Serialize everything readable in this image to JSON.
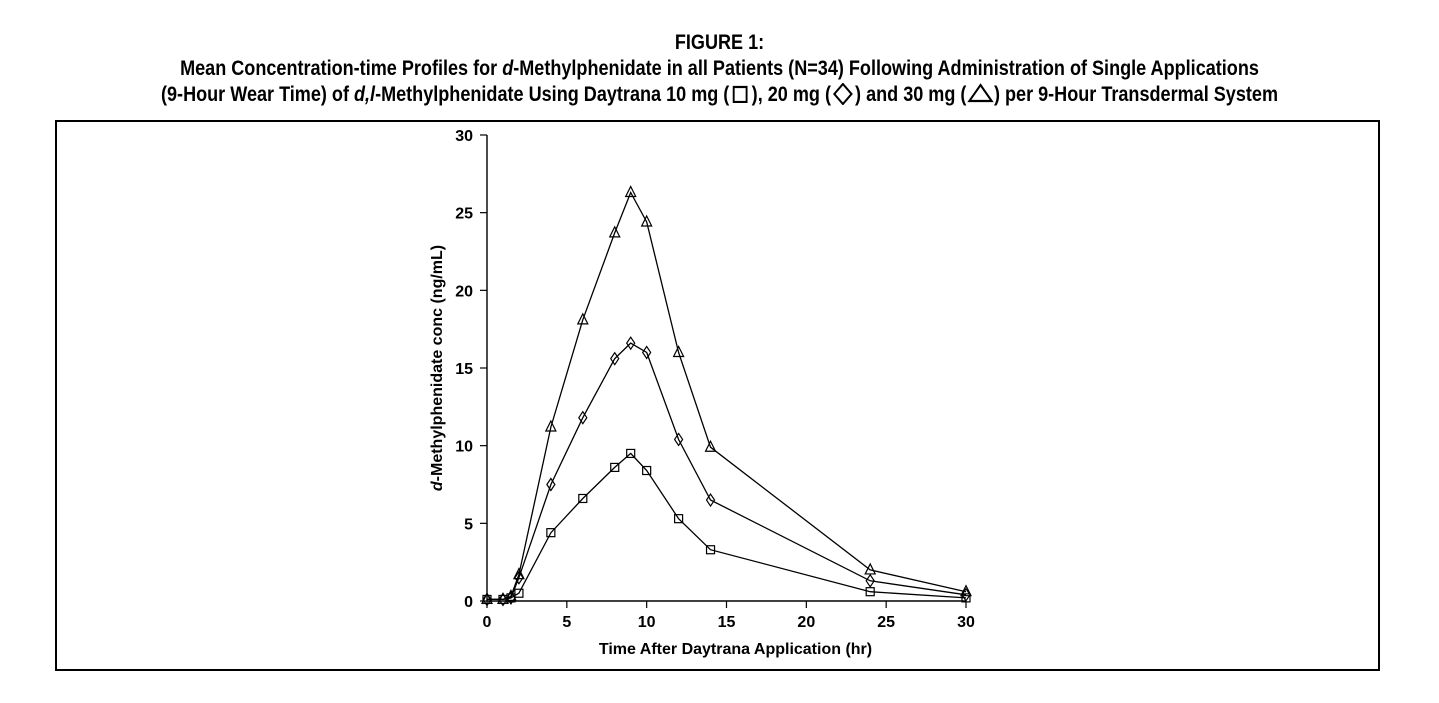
{
  "figure": {
    "heading": "FIGURE 1:",
    "caption_line1_a": "Mean Concentration-time Profiles for ",
    "caption_line1_italic": "d",
    "caption_line1_b": "-Methylphenidate in all Patients (N=34) Following Administration of Single Applications",
    "caption_line2_a": "(9-Hour Wear Time) of ",
    "caption_line2_italic": "d,l",
    "caption_line2_b": "-Methylphenidate Using Daytrana 10 mg (",
    "caption_line2_c": "), 20 mg (",
    "caption_line2_d": ") and 30 mg (",
    "caption_line2_e": ") per 9-Hour Transdermal System"
  },
  "chart_data": {
    "type": "line",
    "xlabel": "Time After Daytrana Application (hr)",
    "ylabel_italic": "d",
    "ylabel_rest": "-Methylphenidate conc (ng/mL)",
    "xlim": [
      0,
      30
    ],
    "ylim": [
      0,
      30
    ],
    "xticks": [
      0,
      5,
      10,
      15,
      20,
      25,
      30
    ],
    "yticks": [
      0,
      5,
      10,
      15,
      20,
      25,
      30
    ],
    "grid": false,
    "series": [
      {
        "name": "10 mg",
        "marker": "square",
        "x": [
          0,
          1,
          1.5,
          2,
          4,
          6,
          8,
          9,
          10,
          12,
          14,
          24,
          30
        ],
        "y": [
          0.1,
          0.1,
          0.2,
          0.5,
          4.4,
          6.6,
          8.6,
          9.5,
          8.4,
          5.3,
          3.3,
          0.6,
          0.2
        ]
      },
      {
        "name": "20 mg",
        "marker": "diamond",
        "x": [
          0,
          1,
          1.5,
          2,
          4,
          6,
          8,
          9,
          10,
          12,
          14,
          24,
          30
        ],
        "y": [
          0.1,
          0.1,
          0.2,
          1.5,
          7.5,
          11.8,
          15.6,
          16.6,
          16.0,
          10.4,
          6.5,
          1.3,
          0.4
        ]
      },
      {
        "name": "30 mg",
        "marker": "triangle",
        "x": [
          0,
          1,
          1.5,
          2,
          4,
          6,
          8,
          9,
          10,
          12,
          14,
          24,
          30
        ],
        "y": [
          0.1,
          0.1,
          0.3,
          1.7,
          11.2,
          18.1,
          23.7,
          26.3,
          24.4,
          16.0,
          9.9,
          2.0,
          0.6
        ]
      }
    ]
  }
}
